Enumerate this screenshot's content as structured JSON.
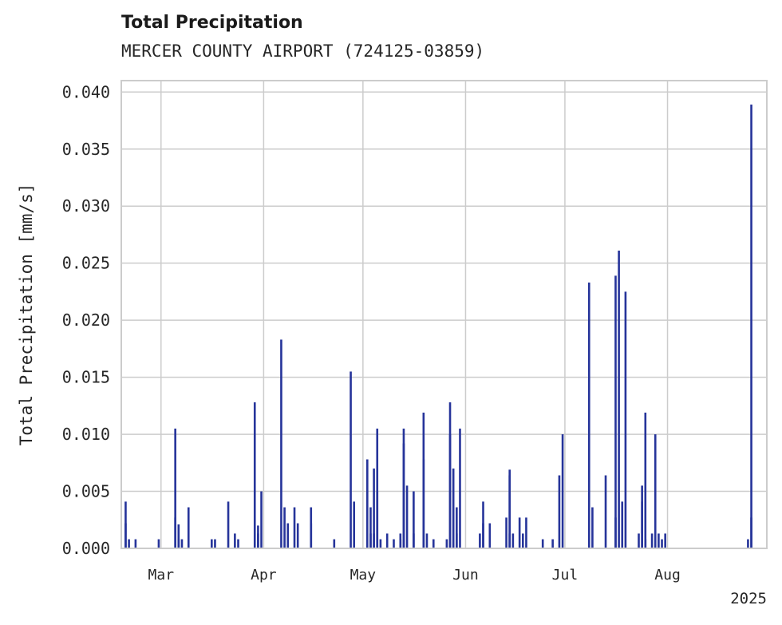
{
  "chart_data": {
    "type": "bar",
    "title": "Total Precipitation",
    "subtitle": "MERCER COUNTY AIRPORT (724125-03859)",
    "xlabel": "",
    "ylabel": "Total Precipitation [mm/s]",
    "ylim": [
      0,
      0.041
    ],
    "xlim": [
      "2025-02-17",
      "2025-08-31"
    ],
    "x_ticks": [
      {
        "date": "2025-03-01",
        "label": "Mar"
      },
      {
        "date": "2025-04-01",
        "label": "Apr"
      },
      {
        "date": "2025-05-01",
        "label": "May"
      },
      {
        "date": "2025-06-01",
        "label": "Jun"
      },
      {
        "date": "2025-07-01",
        "label": "Jul"
      },
      {
        "date": "2025-08-01",
        "label": "Aug"
      }
    ],
    "x_offset_label": "2025",
    "y_ticks": [
      "0.000",
      "0.005",
      "0.010",
      "0.015",
      "0.020",
      "0.025",
      "0.030",
      "0.035",
      "0.040"
    ],
    "grid": true,
    "color": "#26349a",
    "series": [
      {
        "x": [
          "2025-02-18",
          "2025-02-18",
          "2025-02-19",
          "2025-02-21",
          "2025-02-28",
          "2025-03-05",
          "2025-03-05",
          "2025-03-06",
          "2025-03-06",
          "2025-03-07",
          "2025-03-09",
          "2025-03-16",
          "2025-03-17",
          "2025-03-21",
          "2025-03-23",
          "2025-03-24",
          "2025-03-29",
          "2025-03-30",
          "2025-03-30",
          "2025-03-31",
          "2025-04-06",
          "2025-04-07",
          "2025-04-08",
          "2025-04-10",
          "2025-04-11",
          "2025-04-15",
          "2025-04-15",
          "2025-04-22",
          "2025-04-27",
          "2025-04-28",
          "2025-05-02",
          "2025-05-03",
          "2025-05-03",
          "2025-05-04",
          "2025-05-04",
          "2025-05-05",
          "2025-05-05",
          "2025-05-06",
          "2025-05-08",
          "2025-05-10",
          "2025-05-12",
          "2025-05-12",
          "2025-05-13",
          "2025-05-13",
          "2025-05-14",
          "2025-05-16",
          "2025-05-16",
          "2025-05-19",
          "2025-05-19",
          "2025-05-20",
          "2025-05-22",
          "2025-05-26",
          "2025-05-27",
          "2025-05-27",
          "2025-05-28",
          "2025-05-29",
          "2025-05-29",
          "2025-05-30",
          "2025-06-05",
          "2025-06-06",
          "2025-06-06",
          "2025-06-08",
          "2025-06-13",
          "2025-06-14",
          "2025-06-14",
          "2025-06-14",
          "2025-06-15",
          "2025-06-17",
          "2025-06-18",
          "2025-06-19",
          "2025-06-24",
          "2025-06-27",
          "2025-06-29",
          "2025-06-30",
          "2025-07-08",
          "2025-07-09",
          "2025-07-13",
          "2025-07-16",
          "2025-07-16",
          "2025-07-17",
          "2025-07-18",
          "2025-07-19",
          "2025-07-23",
          "2025-07-24",
          "2025-07-24",
          "2025-07-25",
          "2025-07-25",
          "2025-07-27",
          "2025-07-28",
          "2025-07-29",
          "2025-07-30",
          "2025-07-31",
          "2025-08-25",
          "2025-08-26",
          "2025-08-26"
        ],
        "values": [
          0.0022,
          0.0041,
          0.0008,
          0.0008,
          0.0008,
          0.0105,
          0.0027,
          0.0021,
          0.0008,
          0.0008,
          0.0036,
          0.0008,
          0.0008,
          0.0041,
          0.0013,
          0.0008,
          0.0128,
          0.002,
          0.0013,
          0.005,
          0.0183,
          0.0036,
          0.0022,
          0.0036,
          0.0022,
          0.0036,
          0.0022,
          0.0008,
          0.0155,
          0.0041,
          0.0078,
          0.0036,
          0.0013,
          0.007,
          0.0013,
          0.005,
          0.0105,
          0.0008,
          0.0013,
          0.0008,
          0.0013,
          0.0008,
          0.0092,
          0.0105,
          0.0055,
          0.005,
          0.0013,
          0.0078,
          0.0119,
          0.0013,
          0.0008,
          0.0008,
          0.0128,
          0.01,
          0.007,
          0.0036,
          0.0013,
          0.0105,
          0.0013,
          0.0041,
          0.0022,
          0.0022,
          0.0027,
          0.0064,
          0.0069,
          0.0013,
          0.0013,
          0.0027,
          0.0013,
          0.0027,
          0.0008,
          0.0008,
          0.0064,
          0.01,
          0.0233,
          0.0036,
          0.0064,
          0.0239,
          0.0027,
          0.0261,
          0.0041,
          0.0225,
          0.0013,
          0.0041,
          0.0055,
          0.0119,
          0.0008,
          0.0013,
          0.01,
          0.0013,
          0.0008,
          0.0013,
          0.0008,
          0.0389,
          0.0027
        ]
      }
    ]
  }
}
